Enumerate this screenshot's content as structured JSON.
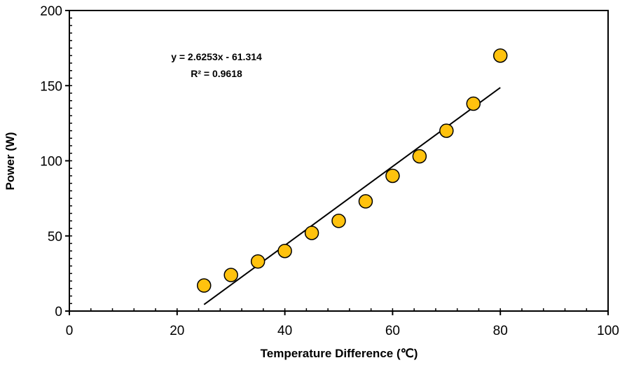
{
  "chart_data": {
    "type": "scatter",
    "title": "",
    "xlabel": "Temperature Difference (℃)",
    "ylabel": "Power (W)",
    "xlim": [
      0,
      100
    ],
    "ylim": [
      0,
      200
    ],
    "x_ticks": [
      0,
      20,
      40,
      60,
      80,
      100
    ],
    "y_ticks": [
      0,
      50,
      100,
      150,
      200
    ],
    "grid": false,
    "legend": "none",
    "marker_color": "#FFC20E",
    "marker_edge_color": "#000000",
    "line_color": "#000000",
    "series": [
      {
        "x": [
          25,
          30,
          35,
          40,
          45,
          50,
          55,
          60,
          65,
          70,
          75,
          80
        ],
        "y": [
          17,
          24,
          33,
          40,
          52,
          60,
          73,
          90,
          103,
          120,
          138,
          170
        ]
      }
    ],
    "trendline": {
      "slope": 2.6253,
      "intercept": -61.314,
      "x_range": [
        25,
        80
      ]
    },
    "annotations": {
      "equation": "y = 2.6253x - 61.314",
      "r_squared": "R² = 0.9618"
    }
  }
}
